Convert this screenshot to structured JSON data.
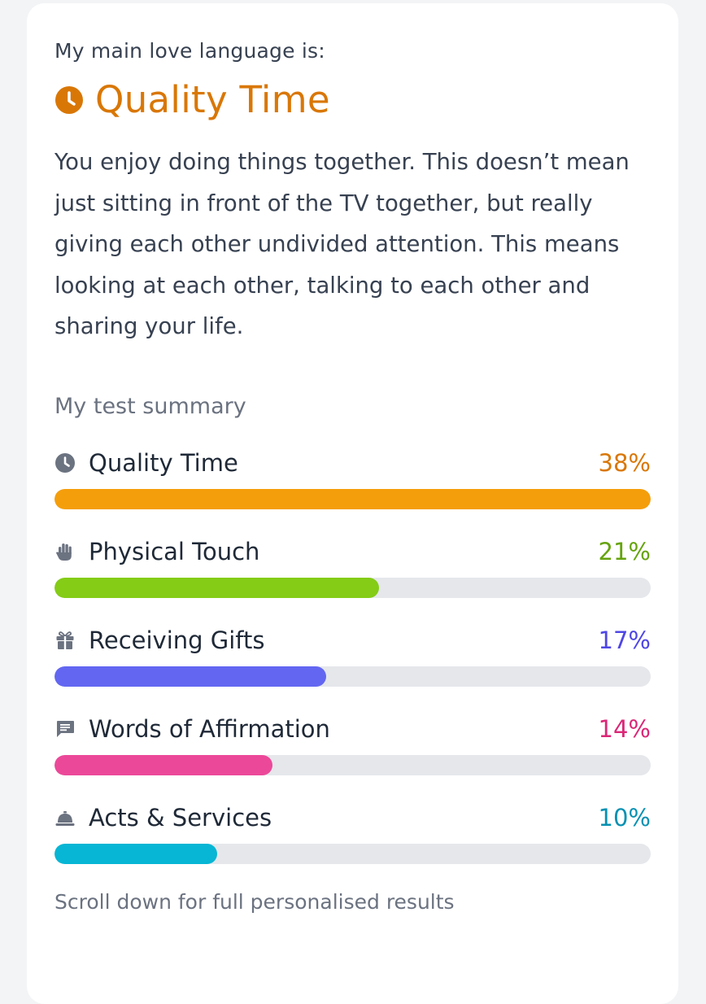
{
  "intro_text": "My main love language is:",
  "headline": {
    "icon": "clock-icon",
    "title": "Quality Time",
    "color": "#d97706"
  },
  "description": "You enjoy doing things together. This doesn’t mean just sitting in front of the TV together, but really giving each other undivided attention. This means looking at each other, talking to each other and sharing your life.",
  "summary": {
    "title": "My test summary",
    "items": [
      {
        "label": "Quality Time",
        "percent_text": "38%",
        "icon": "clock-icon",
        "text_color": "#d97706",
        "bar_color": "#f59e0b",
        "bar_fill": 1.0
      },
      {
        "label": "Physical Touch",
        "percent_text": "21%",
        "icon": "hand-icon",
        "text_color": "#65a30d",
        "bar_color": "#84cc16",
        "bar_fill": 0.545
      },
      {
        "label": "Receiving Gifts",
        "percent_text": "17%",
        "icon": "gift-icon",
        "text_color": "#4f46e5",
        "bar_color": "#6366f1",
        "bar_fill": 0.455
      },
      {
        "label": "Words of Affirmation",
        "percent_text": "14%",
        "icon": "speech-bubble-icon",
        "text_color": "#db2777",
        "bar_color": "#ec4899",
        "bar_fill": 0.365
      },
      {
        "label": "Acts & Services",
        "percent_text": "10%",
        "icon": "service-bell-icon",
        "text_color": "#0891b2",
        "bar_color": "#06b6d4",
        "bar_fill": 0.273
      }
    ]
  },
  "footer_note": "Scroll down for full personalised results"
}
